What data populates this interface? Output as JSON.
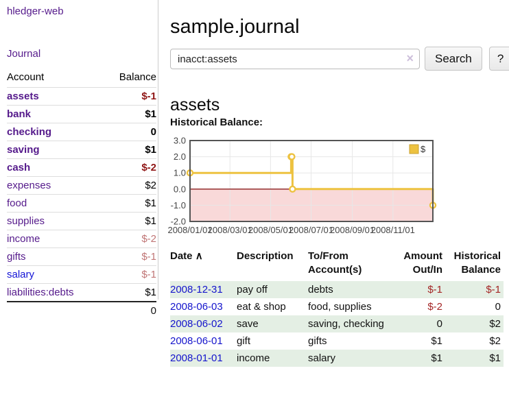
{
  "sidebar": {
    "app_link": "hledger-web",
    "journal_link": "Journal",
    "columns": {
      "account": "Account",
      "balance": "Balance"
    },
    "accounts": [
      {
        "name": "assets",
        "balance": "$-1"
      },
      {
        "name": "bank",
        "balance": "$1"
      },
      {
        "name": "checking",
        "balance": "0"
      },
      {
        "name": "saving",
        "balance": "$1"
      },
      {
        "name": "cash",
        "balance": "$-2"
      },
      {
        "name": "expenses",
        "balance": "$2"
      },
      {
        "name": "food",
        "balance": "$1"
      },
      {
        "name": "supplies",
        "balance": "$1"
      },
      {
        "name": "income",
        "balance": "$-2"
      },
      {
        "name": "gifts",
        "balance": "$-1"
      },
      {
        "name": "salary",
        "balance": "$-1"
      },
      {
        "name": "liabilities:debts",
        "balance": "$1"
      }
    ],
    "total": "0"
  },
  "header": {
    "title": "sample.journal"
  },
  "search": {
    "value": "inacct:assets",
    "clear_icon": "×",
    "button_label": "Search",
    "help_label": "?"
  },
  "account_page": {
    "heading": "assets",
    "chart_caption": "Historical Balance:"
  },
  "chart_data": {
    "type": "line",
    "title": "Historical Balance",
    "step": true,
    "series": [
      {
        "name": "$",
        "color": "#edc240",
        "points": [
          [
            "2008-01-01",
            1
          ],
          [
            "2008-06-01",
            2
          ],
          [
            "2008-06-02",
            2
          ],
          [
            "2008-06-03",
            0
          ],
          [
            "2008-12-31",
            -1
          ]
        ]
      }
    ],
    "xrange": [
      "2008-01-01",
      "2008-12-31"
    ],
    "ylim": [
      -2,
      3
    ],
    "yticks": [
      3,
      2,
      1,
      0,
      -1,
      -2
    ],
    "xticks": [
      {
        "label": "2008/01/01",
        "date": "2008-01-01"
      },
      {
        "label": "2008/03/01",
        "date": "2008-03-01"
      },
      {
        "label": "2008/05/01",
        "date": "2008-05-01"
      },
      {
        "label": "2008/07/01",
        "date": "2008-07-01"
      },
      {
        "label": "2008/09/01",
        "date": "2008-09-01"
      },
      {
        "label": "2008/11/01",
        "date": "2008-11-01"
      }
    ],
    "legend": {
      "label": "$",
      "position": "top-right"
    },
    "grid": true,
    "negative_region_color": "#f9d9d9",
    "zero_line_color": "#8b1d1d"
  },
  "register": {
    "columns": {
      "date": "Date",
      "description": "Description",
      "accounts": "To/From Account(s)",
      "amount": "Amount Out/In",
      "balance": "Historical Balance"
    },
    "sort_icon": "∧",
    "rows": [
      {
        "date": "2008-12-31",
        "description": "pay off",
        "accounts": "debts",
        "amount": "$-1",
        "balance": "$-1"
      },
      {
        "date": "2008-06-03",
        "description": "eat & shop",
        "accounts": "food, supplies",
        "amount": "$-2",
        "balance": "0"
      },
      {
        "date": "2008-06-02",
        "description": "save",
        "accounts": "saving, checking",
        "amount": "0",
        "balance": "$2"
      },
      {
        "date": "2008-06-01",
        "description": "gift",
        "accounts": "gifts",
        "amount": "$1",
        "balance": "$2"
      },
      {
        "date": "2008-01-01",
        "description": "income",
        "accounts": "salary",
        "amount": "$1",
        "balance": "$1"
      }
    ]
  }
}
